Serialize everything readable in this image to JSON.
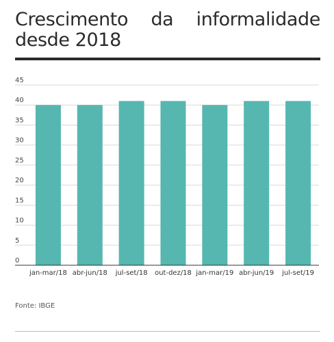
{
  "header": {
    "title": "Crescimento da informalidade desde 2018"
  },
  "chart_data": {
    "type": "bar",
    "categories": [
      "jan-mar/18",
      "abr-jun/18",
      "jul-set/18",
      "out-dez/18",
      "jan-mar/19",
      "abr-jun/19",
      "jul-set/19"
    ],
    "values": [
      40,
      40,
      41,
      41,
      40,
      41,
      41
    ],
    "ylim": [
      0,
      45
    ],
    "yticks": [
      0,
      5,
      10,
      15,
      20,
      25,
      30,
      35,
      40,
      45
    ],
    "grid": true,
    "bar_color": "#55b7b0",
    "grid_color": "#d9d9d9"
  },
  "footer": {
    "source": "Fonte: IBGE"
  }
}
